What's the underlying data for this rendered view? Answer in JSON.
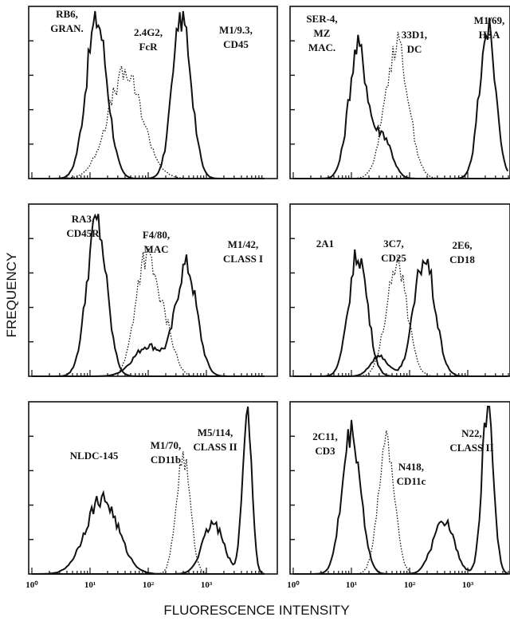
{
  "figure": {
    "xlabel": "FLUORESCENCE INTENSITY",
    "ylabel": "FREQUENCY",
    "x_ticks": [
      "10⁰",
      "10¹",
      "10²",
      "10³"
    ]
  },
  "chart_data": {
    "type": "histogram-grid",
    "x_scale": "log",
    "xlim": [
      1,
      10000
    ],
    "panels": [
      {
        "labels": [
          "RB6,",
          "GRAN.",
          "2.4G2,",
          "FcR",
          "M1/9.3,",
          "CD45"
        ],
        "series": [
          {
            "label": "RB6, GRAN.",
            "style": "solid",
            "peaks": [
              {
                "mean": 13,
                "height": 0.95,
                "width": 0.18
              }
            ]
          },
          {
            "label": "2.4G2, FcR",
            "style": "dotted",
            "peaks": [
              {
                "mean": 40,
                "height": 0.62,
                "width": 0.3
              }
            ]
          },
          {
            "label": "M1/9.3, CD45",
            "style": "solid",
            "peaks": [
              {
                "mean": 380,
                "height": 0.97,
                "width": 0.16
              }
            ]
          }
        ]
      },
      {
        "labels": [
          "SER-4,",
          "MZ",
          "MAC.",
          "33D1,",
          "DC",
          "M1/69,",
          "HSA"
        ],
        "series": [
          {
            "label": "SER-4, MZ MAC.",
            "style": "solid",
            "peaks": [
              {
                "mean": 13,
                "height": 0.78,
                "width": 0.16
              },
              {
                "mean": 35,
                "height": 0.25,
                "width": 0.15
              }
            ]
          },
          {
            "label": "33D1, DC",
            "style": "dotted",
            "peaks": [
              {
                "mean": 60,
                "height": 0.8,
                "width": 0.2
              }
            ]
          },
          {
            "label": "M1/69, HSA",
            "style": "solid",
            "peaks": [
              {
                "mean": 2200,
                "height": 0.9,
                "width": 0.14
              }
            ]
          }
        ]
      },
      {
        "labels": [
          "RA3,",
          "CD45R",
          "F4/80,",
          "MAC",
          "M1/42,",
          "CLASS I"
        ],
        "series": [
          {
            "label": "RA3, CD45R",
            "style": "solid",
            "peaks": [
              {
                "mean": 13,
                "height": 0.92,
                "width": 0.17
              }
            ]
          },
          {
            "label": "F4/80, MAC",
            "style": "dotted",
            "peaks": [
              {
                "mean": 90,
                "height": 0.7,
                "width": 0.18
              },
              {
                "mean": 200,
                "height": 0.25,
                "width": 0.15
              }
            ]
          },
          {
            "label": "M1/42, CLASS I",
            "style": "solid",
            "peaks": [
              {
                "mean": 450,
                "height": 0.65,
                "width": 0.18
              },
              {
                "mean": 100,
                "height": 0.18,
                "width": 0.25
              }
            ]
          }
        ]
      },
      {
        "labels": [
          "2A1",
          "3C7,",
          "CD25",
          "2E6,",
          "CD18"
        ],
        "series": [
          {
            "label": "2A1",
            "style": "solid",
            "peaks": [
              {
                "mean": 13,
                "height": 0.73,
                "width": 0.16
              }
            ]
          },
          {
            "label": "3C7, CD25",
            "style": "dotted",
            "peaks": [
              {
                "mean": 60,
                "height": 0.67,
                "width": 0.18
              }
            ]
          },
          {
            "label": "2E6, CD18",
            "style": "solid",
            "peaks": [
              {
                "mean": 180,
                "height": 0.7,
                "width": 0.18
              },
              {
                "mean": 30,
                "height": 0.12,
                "width": 0.15
              }
            ]
          }
        ]
      },
      {
        "labels": [
          "NLDC-145",
          "M1/70,",
          "CD11b",
          "M5/114,",
          "CLASS II"
        ],
        "series": [
          {
            "label": "NLDC-145",
            "style": "solid",
            "peaks": [
              {
                "mean": 16,
                "height": 0.45,
                "width": 0.28
              }
            ]
          },
          {
            "label": "M1/70, CD11b",
            "style": "dotted",
            "peaks": [
              {
                "mean": 400,
                "height": 0.7,
                "width": 0.12
              }
            ]
          },
          {
            "label": "M5/114, CLASS II",
            "style": "solid",
            "peaks": [
              {
                "mean": 1300,
                "height": 0.3,
                "width": 0.18
              },
              {
                "mean": 5000,
                "height": 0.98,
                "width": 0.08
              }
            ]
          }
        ]
      },
      {
        "labels": [
          "2C11,",
          "CD3",
          "N418,",
          "CD11c",
          "N22,",
          "CLASS II"
        ],
        "series": [
          {
            "label": "2C11, CD3",
            "style": "solid",
            "peaks": [
              {
                "mean": 10,
                "height": 0.85,
                "width": 0.16
              }
            ]
          },
          {
            "label": "N418, CD11c",
            "style": "dotted",
            "peaks": [
              {
                "mean": 40,
                "height": 0.8,
                "width": 0.14
              }
            ]
          },
          {
            "label": "N22, CLASS II",
            "style": "solid",
            "peaks": [
              {
                "mean": 380,
                "height": 0.32,
                "width": 0.18
              },
              {
                "mean": 2200,
                "height": 0.98,
                "width": 0.1
              }
            ]
          }
        ]
      }
    ]
  }
}
